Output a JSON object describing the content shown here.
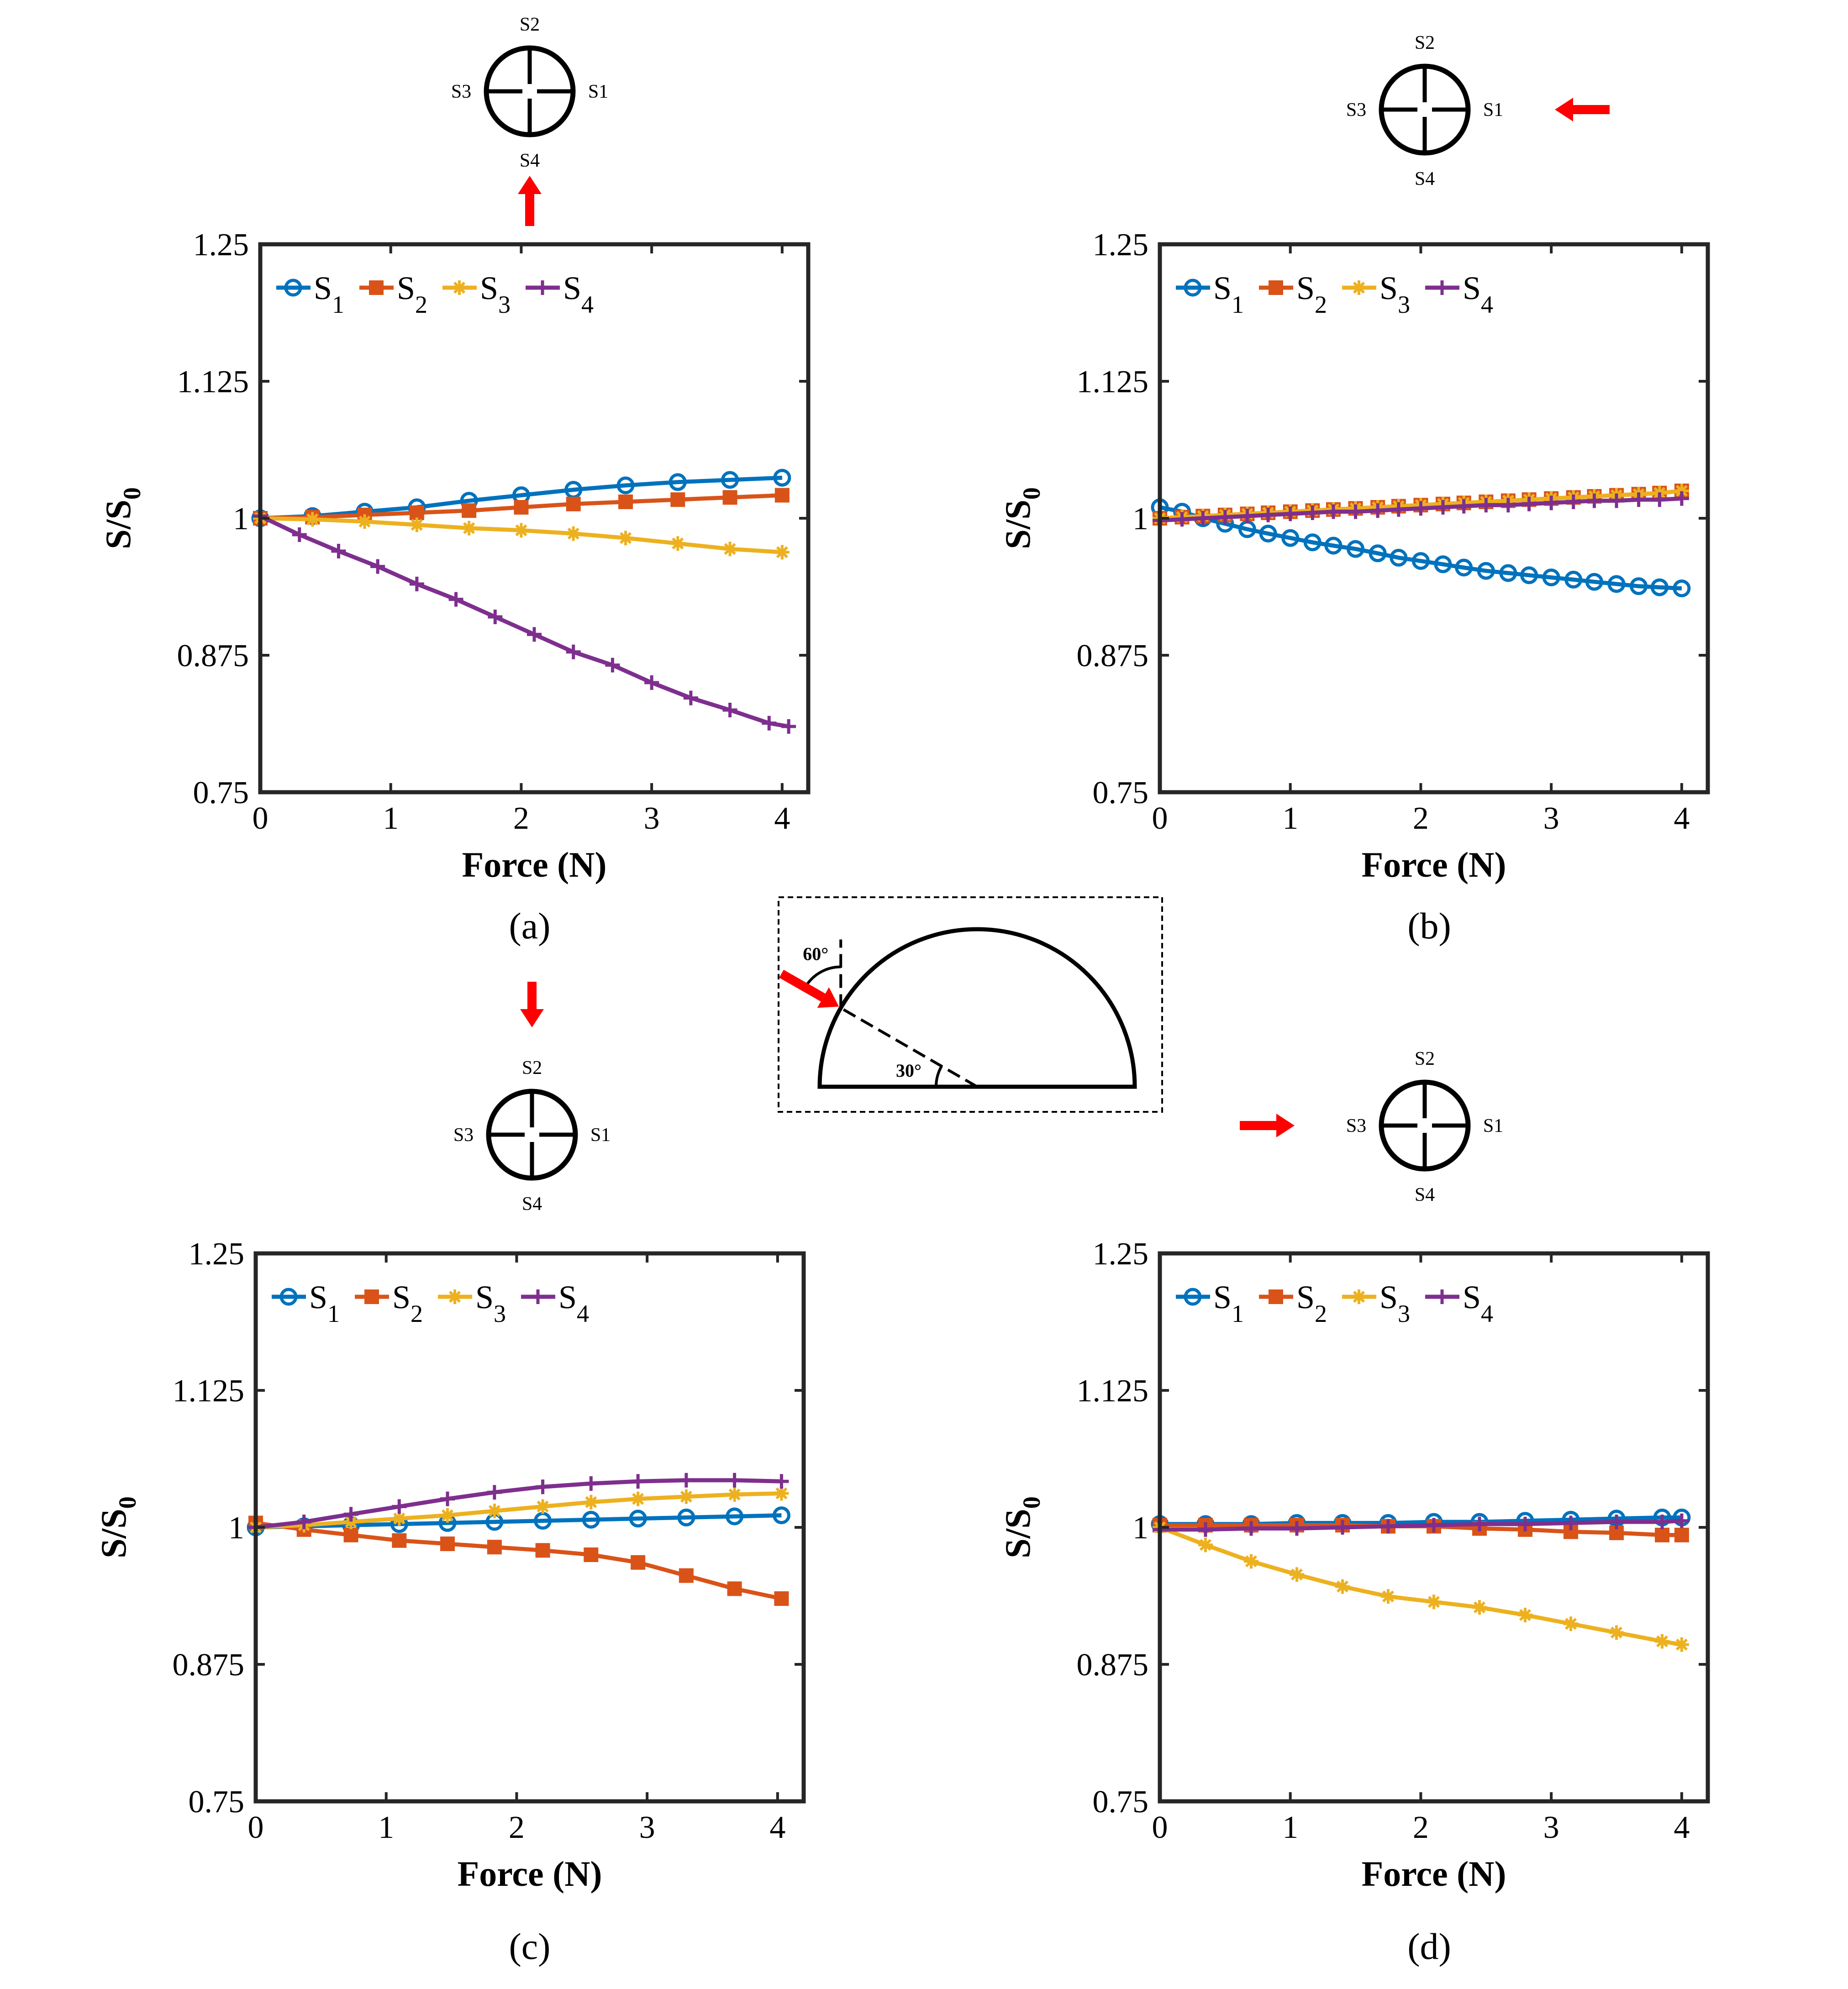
{
  "colors": {
    "S1": "#0072BD",
    "S2": "#D95319",
    "S3": "#EDB120",
    "S4": "#7E2F8E",
    "arrow": "#FF0000",
    "axis": "#262626"
  },
  "chart_data": [
    {
      "id": "a",
      "type": "line",
      "caption": "(a)",
      "xlabel": "Force (N)",
      "ylabel": "S/S0",
      "xlim": [
        0,
        4.2
      ],
      "ylim": [
        0.75,
        1.25
      ],
      "xticks": [
        0,
        1,
        2,
        3,
        4
      ],
      "xtick_labels": [
        "0",
        "1",
        "2",
        "3",
        "4"
      ],
      "yticks": [
        0.75,
        0.875,
        1,
        1.125,
        1.25
      ],
      "ytick_labels": [
        "0.75",
        "0.875",
        "1",
        "1.125",
        "1.25"
      ],
      "legend": [
        "S1",
        "S2",
        "S3",
        "S4"
      ],
      "legend_location": "top-left, horizontal",
      "series": [
        {
          "name": "S1",
          "marker": "circle",
          "x": [
            0,
            0.4,
            0.8,
            1.2,
            1.6,
            2.0,
            2.4,
            2.8,
            3.2,
            3.6,
            4.0
          ],
          "values": [
            1.0,
            1.002,
            1.006,
            1.01,
            1.016,
            1.021,
            1.026,
            1.03,
            1.033,
            1.035,
            1.037
          ]
        },
        {
          "name": "S2",
          "marker": "square",
          "x": [
            0,
            0.4,
            0.8,
            1.2,
            1.6,
            2.0,
            2.4,
            2.8,
            3.2,
            3.6,
            4.0
          ],
          "values": [
            1.0,
            1.001,
            1.003,
            1.005,
            1.007,
            1.01,
            1.013,
            1.015,
            1.017,
            1.019,
            1.021
          ]
        },
        {
          "name": "S3",
          "marker": "star",
          "x": [
            0,
            0.4,
            0.8,
            1.2,
            1.6,
            2.0,
            2.4,
            2.8,
            3.2,
            3.6,
            4.0
          ],
          "values": [
            1.0,
            0.999,
            0.997,
            0.994,
            0.991,
            0.989,
            0.986,
            0.982,
            0.977,
            0.972,
            0.969
          ]
        },
        {
          "name": "S4",
          "marker": "plus",
          "x": [
            0,
            0.3,
            0.6,
            0.9,
            1.2,
            1.5,
            1.8,
            2.1,
            2.4,
            2.7,
            3.0,
            3.3,
            3.6,
            3.9,
            4.05
          ],
          "values": [
            1.002,
            0.985,
            0.97,
            0.956,
            0.94,
            0.926,
            0.91,
            0.894,
            0.878,
            0.866,
            0.85,
            0.836,
            0.825,
            0.813,
            0.81
          ]
        }
      ],
      "sensor_diagram": {
        "labels": [
          "S1",
          "S2",
          "S3",
          "S4"
        ],
        "arrow_side": "bottom"
      }
    },
    {
      "id": "b",
      "type": "line",
      "caption": "(b)",
      "xlabel": "Force (N)",
      "ylabel": "S/S0",
      "xlim": [
        0,
        4.2
      ],
      "ylim": [
        0.75,
        1.25
      ],
      "xticks": [
        0,
        1,
        2,
        3,
        4
      ],
      "xtick_labels": [
        "0",
        "1",
        "2",
        "3",
        "4"
      ],
      "yticks": [
        0.75,
        0.875,
        1,
        1.125,
        1.25
      ],
      "ytick_labels": [
        "0.75",
        "0.875",
        "1",
        "1.125",
        "1.25"
      ],
      "legend": [
        "S1",
        "S2",
        "S3",
        "S4"
      ],
      "legend_location": "top-left, horizontal",
      "series": [
        {
          "name": "S1",
          "marker": "circle",
          "x": [
            0,
            0.17,
            0.33,
            0.5,
            0.67,
            0.83,
            1.0,
            1.17,
            1.33,
            1.5,
            1.67,
            1.83,
            2.0,
            2.17,
            2.33,
            2.5,
            2.67,
            2.83,
            3.0,
            3.17,
            3.33,
            3.5,
            3.67,
            3.83,
            4.0
          ],
          "values": [
            1.01,
            1.006,
            1.0,
            0.995,
            0.99,
            0.986,
            0.982,
            0.978,
            0.975,
            0.972,
            0.968,
            0.964,
            0.961,
            0.958,
            0.955,
            0.952,
            0.95,
            0.948,
            0.946,
            0.944,
            0.942,
            0.94,
            0.938,
            0.937,
            0.936
          ]
        },
        {
          "name": "S2",
          "marker": "square",
          "x": [
            0,
            0.17,
            0.33,
            0.5,
            0.67,
            0.83,
            1.0,
            1.17,
            1.33,
            1.5,
            1.67,
            1.83,
            2.0,
            2.17,
            2.33,
            2.5,
            2.67,
            2.83,
            3.0,
            3.17,
            3.33,
            3.5,
            3.67,
            3.83,
            4.0
          ],
          "values": [
            1.0,
            1.001,
            1.002,
            1.003,
            1.004,
            1.005,
            1.006,
            1.007,
            1.008,
            1.009,
            1.01,
            1.011,
            1.012,
            1.013,
            1.014,
            1.015,
            1.016,
            1.017,
            1.018,
            1.019,
            1.02,
            1.021,
            1.022,
            1.023,
            1.025
          ]
        },
        {
          "name": "S3",
          "marker": "star",
          "x": [
            0,
            0.17,
            0.33,
            0.5,
            0.67,
            0.83,
            1.0,
            1.17,
            1.33,
            1.5,
            1.67,
            1.83,
            2.0,
            2.17,
            2.33,
            2.5,
            2.67,
            2.83,
            3.0,
            3.17,
            3.33,
            3.5,
            3.67,
            3.83,
            4.0
          ],
          "values": [
            1.0,
            1.001,
            1.002,
            1.003,
            1.004,
            1.005,
            1.006,
            1.007,
            1.008,
            1.009,
            1.01,
            1.011,
            1.012,
            1.013,
            1.014,
            1.015,
            1.016,
            1.017,
            1.018,
            1.019,
            1.02,
            1.021,
            1.022,
            1.023,
            1.025
          ]
        },
        {
          "name": "S4",
          "marker": "plus",
          "x": [
            0,
            0.17,
            0.33,
            0.5,
            0.67,
            0.83,
            1.0,
            1.17,
            1.33,
            1.5,
            1.67,
            1.83,
            2.0,
            2.17,
            2.33,
            2.5,
            2.67,
            2.83,
            3.0,
            3.17,
            3.33,
            3.5,
            3.67,
            3.83,
            4.0
          ],
          "values": [
            0.998,
            0.999,
            1.0,
            1.001,
            1.002,
            1.003,
            1.004,
            1.005,
            1.006,
            1.006,
            1.007,
            1.008,
            1.009,
            1.01,
            1.011,
            1.012,
            1.012,
            1.013,
            1.014,
            1.015,
            1.016,
            1.016,
            1.017,
            1.017,
            1.018
          ]
        }
      ],
      "sensor_diagram": {
        "labels": [
          "S1",
          "S2",
          "S3",
          "S4"
        ],
        "arrow_side": "right"
      }
    },
    {
      "id": "c",
      "type": "line",
      "caption": "(c)",
      "xlabel": "Force (N)",
      "ylabel": "S/S0",
      "xlim": [
        0,
        4.2
      ],
      "ylim": [
        0.75,
        1.25
      ],
      "xticks": [
        0,
        1,
        2,
        3,
        4
      ],
      "xtick_labels": [
        "0",
        "1",
        "2",
        "3",
        "4"
      ],
      "yticks": [
        0.75,
        0.875,
        1,
        1.125,
        1.25
      ],
      "ytick_labels": [
        "0.75",
        "0.875",
        "1",
        "1.125",
        "1.25"
      ],
      "legend": [
        "S1",
        "S2",
        "S3",
        "S4"
      ],
      "legend_location": "top-left, horizontal",
      "series": [
        {
          "name": "S1",
          "marker": "circle",
          "x": [
            0,
            0.37,
            0.73,
            1.1,
            1.47,
            1.83,
            2.2,
            2.57,
            2.93,
            3.3,
            3.67,
            4.03
          ],
          "values": [
            1.0,
            1.001,
            1.002,
            1.003,
            1.004,
            1.005,
            1.006,
            1.007,
            1.008,
            1.009,
            1.01,
            1.011
          ]
        },
        {
          "name": "S2",
          "marker": "square",
          "x": [
            0,
            0.37,
            0.73,
            1.1,
            1.47,
            1.83,
            2.2,
            2.57,
            2.93,
            3.3,
            3.67,
            4.03
          ],
          "values": [
            1.004,
            0.998,
            0.993,
            0.988,
            0.985,
            0.982,
            0.979,
            0.975,
            0.968,
            0.956,
            0.944,
            0.935
          ]
        },
        {
          "name": "S3",
          "marker": "star",
          "x": [
            0,
            0.37,
            0.73,
            1.1,
            1.47,
            1.83,
            2.2,
            2.57,
            2.93,
            3.3,
            3.67,
            4.03
          ],
          "values": [
            1.0,
            1.002,
            1.005,
            1.008,
            1.011,
            1.015,
            1.019,
            1.023,
            1.026,
            1.028,
            1.03,
            1.031
          ]
        },
        {
          "name": "S4",
          "marker": "plus",
          "x": [
            0,
            0.37,
            0.73,
            1.1,
            1.47,
            1.83,
            2.2,
            2.57,
            2.93,
            3.3,
            3.67,
            4.03
          ],
          "values": [
            1.0,
            1.005,
            1.012,
            1.019,
            1.026,
            1.032,
            1.037,
            1.04,
            1.042,
            1.043,
            1.043,
            1.042
          ]
        }
      ],
      "sensor_diagram": {
        "labels": [
          "S1",
          "S2",
          "S3",
          "S4"
        ],
        "arrow_side": "top"
      }
    },
    {
      "id": "d",
      "type": "line",
      "caption": "(d)",
      "xlabel": "Force (N)",
      "ylabel": "S/S0",
      "xlim": [
        0,
        4.2
      ],
      "ylim": [
        0.75,
        1.25
      ],
      "xticks": [
        0,
        1,
        2,
        3,
        4
      ],
      "xtick_labels": [
        "0",
        "1",
        "2",
        "3",
        "4"
      ],
      "yticks": [
        0.75,
        0.875,
        1,
        1.125,
        1.25
      ],
      "ytick_labels": [
        "0.75",
        "0.875",
        "1",
        "1.125",
        "1.25"
      ],
      "legend": [
        "S1",
        "S2",
        "S3",
        "S4"
      ],
      "legend_location": "top-left, horizontal",
      "series": [
        {
          "name": "S1",
          "marker": "circle",
          "x": [
            0,
            0.35,
            0.7,
            1.05,
            1.4,
            1.75,
            2.1,
            2.45,
            2.8,
            3.15,
            3.5,
            3.85,
            4.0
          ],
          "values": [
            1.003,
            1.003,
            1.003,
            1.004,
            1.004,
            1.004,
            1.005,
            1.005,
            1.006,
            1.007,
            1.008,
            1.009,
            1.009
          ]
        },
        {
          "name": "S2",
          "marker": "square",
          "x": [
            0,
            0.35,
            0.7,
            1.05,
            1.4,
            1.75,
            2.1,
            2.45,
            2.8,
            3.15,
            3.5,
            3.85,
            4.0
          ],
          "values": [
            1.002,
            1.002,
            1.002,
            1.002,
            1.002,
            1.001,
            1.001,
            0.999,
            0.998,
            0.996,
            0.995,
            0.993,
            0.993
          ]
        },
        {
          "name": "S3",
          "marker": "star",
          "x": [
            0,
            0.35,
            0.7,
            1.05,
            1.4,
            1.75,
            2.1,
            2.45,
            2.8,
            3.15,
            3.5,
            3.85,
            4.0
          ],
          "values": [
            1.0,
            0.984,
            0.969,
            0.957,
            0.946,
            0.937,
            0.932,
            0.927,
            0.92,
            0.912,
            0.904,
            0.896,
            0.893
          ]
        },
        {
          "name": "S4",
          "marker": "plus",
          "x": [
            0,
            0.35,
            0.7,
            1.05,
            1.4,
            1.75,
            2.1,
            2.45,
            2.8,
            3.15,
            3.5,
            3.85,
            4.0
          ],
          "values": [
            0.998,
            0.998,
            0.999,
            0.999,
            1.0,
            1.001,
            1.002,
            1.003,
            1.003,
            1.004,
            1.005,
            1.005,
            1.006
          ]
        }
      ],
      "sensor_diagram": {
        "labels": [
          "S1",
          "S2",
          "S3",
          "S4"
        ],
        "arrow_side": "left"
      }
    }
  ],
  "inset": {
    "angle_top": "60°",
    "angle_bottom": "30°"
  }
}
